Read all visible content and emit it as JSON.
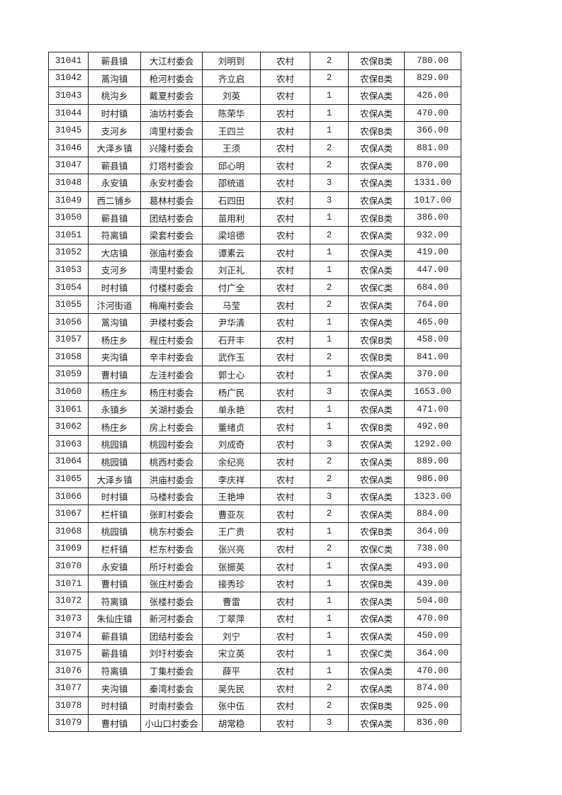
{
  "table": {
    "rows": [
      [
        "31041",
        "蕲县镇",
        "大江村委会",
        "刘明到",
        "农村",
        "2",
        "农保B类",
        "780.00"
      ],
      [
        "31042",
        "蒿沟镇",
        "枪河村委会",
        "齐立启",
        "农村",
        "2",
        "农保B类",
        "829.00"
      ],
      [
        "31043",
        "桃沟乡",
        "戴夏村委会",
        "刘英",
        "农村",
        "1",
        "农保A类",
        "426.00"
      ],
      [
        "31044",
        "时村镇",
        "油坊村委会",
        "陈荣华",
        "农村",
        "1",
        "农保A类",
        "470.00"
      ],
      [
        "31045",
        "支河乡",
        "湾里村委会",
        "王四兰",
        "农村",
        "1",
        "农保B类",
        "366.00"
      ],
      [
        "31046",
        "大泽乡镇",
        "兴隆村委会",
        "王须",
        "农村",
        "2",
        "农保A类",
        "881.00"
      ],
      [
        "31047",
        "蕲县镇",
        "灯塔村委会",
        "邱心明",
        "农村",
        "2",
        "农保A类",
        "870.00"
      ],
      [
        "31048",
        "永安镇",
        "永安村委会",
        "邵统道",
        "农村",
        "3",
        "农保A类",
        "1331.00"
      ],
      [
        "31049",
        "西二铺乡",
        "葛林村委会",
        "石四田",
        "农村",
        "3",
        "农保A类",
        "1017.00"
      ],
      [
        "31050",
        "蕲县镇",
        "团结村委会",
        "苗用利",
        "农村",
        "1",
        "农保B类",
        "386.00"
      ],
      [
        "31051",
        "符离镇",
        "梁套村委会",
        "梁培德",
        "农村",
        "2",
        "农保A类",
        "932.00"
      ],
      [
        "31052",
        "大店镇",
        "张庙村委会",
        "谭素云",
        "农村",
        "1",
        "农保A类",
        "419.00"
      ],
      [
        "31053",
        "支河乡",
        "湾里村委会",
        "刘正礼",
        "农村",
        "1",
        "农保A类",
        "447.00"
      ],
      [
        "31054",
        "时村镇",
        "付楼村委会",
        "付广全",
        "农村",
        "2",
        "农保C类",
        "684.00"
      ],
      [
        "31055",
        "汴河街道",
        "梅庵村委会",
        "马莹",
        "农村",
        "2",
        "农保A类",
        "764.00"
      ],
      [
        "31056",
        "蒿沟镇",
        "尹楼村委会",
        "尹华清",
        "农村",
        "1",
        "农保A类",
        "465.00"
      ],
      [
        "31057",
        "杨庄乡",
        "程庄村委会",
        "石开丰",
        "农村",
        "1",
        "农保B类",
        "458.00"
      ],
      [
        "31058",
        "夹沟镇",
        "辛丰村委会",
        "武作玉",
        "农村",
        "2",
        "农保B类",
        "841.00"
      ],
      [
        "31059",
        "曹村镇",
        "左洼村委会",
        "郭士心",
        "农村",
        "1",
        "农保A类",
        "370.00"
      ],
      [
        "31060",
        "杨庄乡",
        "杨庄村委会",
        "杨广民",
        "农村",
        "3",
        "农保A类",
        "1653.00"
      ],
      [
        "31061",
        "永镇乡",
        "关湖村委会",
        "单永艳",
        "农村",
        "1",
        "农保A类",
        "471.00"
      ],
      [
        "31062",
        "杨庄乡",
        "房上村委会",
        "董绪贞",
        "农村",
        "1",
        "农保B类",
        "492.00"
      ],
      [
        "31063",
        "桃园镇",
        "桃园村委会",
        "刘成奇",
        "农村",
        "3",
        "农保A类",
        "1292.00"
      ],
      [
        "31064",
        "桃园镇",
        "桃西村委会",
        "余纪亮",
        "农村",
        "2",
        "农保A类",
        "889.00"
      ],
      [
        "31065",
        "大泽乡镇",
        "洪庙村委会",
        "李庆祥",
        "农村",
        "2",
        "农保A类",
        "986.00"
      ],
      [
        "31066",
        "时村镇",
        "马楼村委会",
        "王艳坤",
        "农村",
        "3",
        "农保A类",
        "1323.00"
      ],
      [
        "31067",
        "栏杆镇",
        "张町村委会",
        "曹亚灰",
        "农村",
        "2",
        "农保A类",
        "884.00"
      ],
      [
        "31068",
        "桃园镇",
        "桃东村委会",
        "王广贵",
        "农村",
        "1",
        "农保B类",
        "364.00"
      ],
      [
        "31069",
        "栏杆镇",
        "栏东村委会",
        "张兴亮",
        "农村",
        "2",
        "农保C类",
        "738.00"
      ],
      [
        "31070",
        "永安镇",
        "所圩村委会",
        "张振英",
        "农村",
        "1",
        "农保A类",
        "493.00"
      ],
      [
        "31071",
        "曹村镇",
        "张庄村委会",
        "接秀珍",
        "农村",
        "1",
        "农保B类",
        "439.00"
      ],
      [
        "31072",
        "符离镇",
        "张楼村委会",
        "曹雷",
        "农村",
        "1",
        "农保A类",
        "504.00"
      ],
      [
        "31073",
        "朱仙庄镇",
        "新河村委会",
        "丁翠萍",
        "农村",
        "1",
        "农保A类",
        "470.00"
      ],
      [
        "31074",
        "蕲县镇",
        "团结村委会",
        "刘宁",
        "农村",
        "1",
        "农保A类",
        "450.00"
      ],
      [
        "31075",
        "蕲县镇",
        "刘圩村委会",
        "宋立英",
        "农村",
        "1",
        "农保C类",
        "364.00"
      ],
      [
        "31076",
        "符离镇",
        "丁集村委会",
        "薛平",
        "农村",
        "1",
        "农保A类",
        "470.00"
      ],
      [
        "31077",
        "夹沟镇",
        "秦湾村委会",
        "吴先民",
        "农村",
        "2",
        "农保A类",
        "874.00"
      ],
      [
        "31078",
        "时村镇",
        "时南村委会",
        "张中伍",
        "农村",
        "2",
        "农保B类",
        "925.00"
      ],
      [
        "31079",
        "曹村镇",
        "小山口村委会",
        "胡常稳",
        "农村",
        "3",
        "农保A类",
        "836.00"
      ]
    ]
  }
}
